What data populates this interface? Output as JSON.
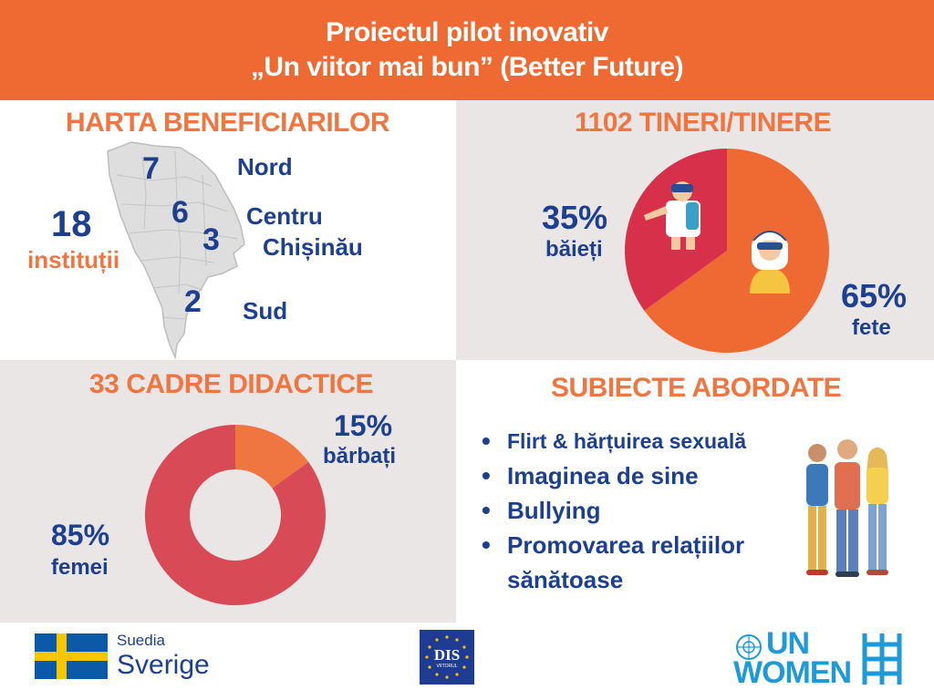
{
  "header": {
    "line1": "Proiectul pilot inovativ",
    "line2": "„Un viitor mai bun” (Better Future)"
  },
  "map_panel": {
    "title": "HARTA BENEFICIARILOR",
    "total_number": "18",
    "total_label": "instituții",
    "regions": [
      {
        "count": "7",
        "name": "Nord"
      },
      {
        "count": "6",
        "name": "Centru"
      },
      {
        "count": "3",
        "name": "Chișinău"
      },
      {
        "count": "2",
        "name": "Sud"
      }
    ]
  },
  "youth_panel": {
    "title": "1102 TINERI/TINERE",
    "boys_pct": "35%",
    "boys_label": "băieți",
    "girls_pct": "65%",
    "girls_label": "fete"
  },
  "teachers_panel": {
    "title": "33 CADRE DIDACTICE",
    "men_pct": "15%",
    "men_label": "bărbați",
    "women_pct": "85%",
    "women_label": "femei"
  },
  "topics_panel": {
    "title": "SUBIECTE  ABORDATE",
    "items": [
      "Flirt & hărțuirea sexuală",
      "Imaginea de sine",
      "Bullying",
      "Promovarea relațiilor sănătoase"
    ]
  },
  "footer": {
    "sweden_line1": "Suedia",
    "sweden_line2": "Sverige",
    "dis_logo_text": "DIS",
    "dis_logo_sub": "VIITORUL",
    "unwomen_line1": "UN",
    "unwomen_line2": "WOMEN"
  },
  "chart_data": [
    {
      "type": "pie",
      "title": "1102 TINERI/TINERE",
      "categories": [
        "băieți",
        "fete"
      ],
      "values": [
        35,
        65
      ],
      "colors": [
        "#d6304a",
        "#ef6a32"
      ]
    },
    {
      "type": "pie",
      "title": "33 CADRE DIDACTICE",
      "categories": [
        "bărbați",
        "femei"
      ],
      "values": [
        15,
        85
      ],
      "colors": [
        "#ef7541",
        "#d84a55"
      ]
    }
  ],
  "colors": {
    "brand_orange": "#ef6a32",
    "text_blue": "#1c3f8f",
    "panel_grey": "#ebe6e6",
    "un_blue": "#1e9ad6"
  }
}
